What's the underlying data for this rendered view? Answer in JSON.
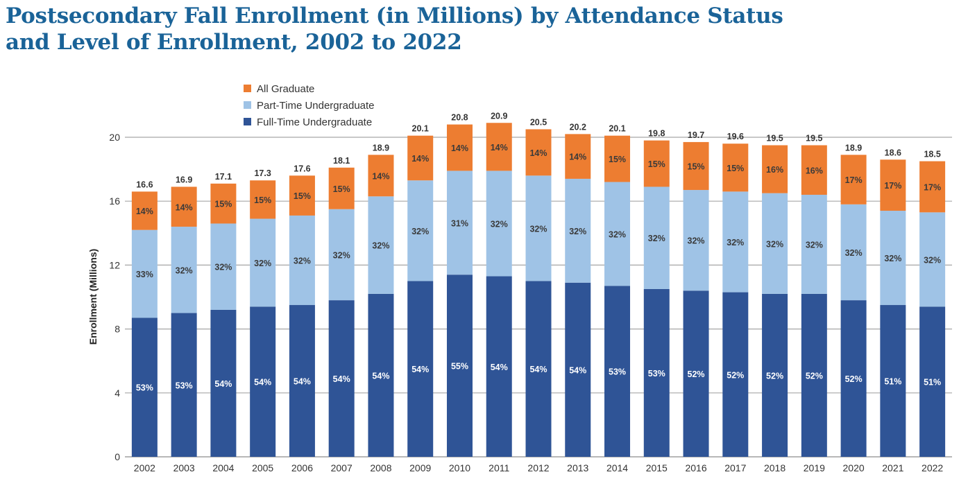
{
  "title_line1": "Postsecondary Fall Enrollment (in Millions) by Attendance Status",
  "title_line2": "and Level of Enrollment, 2002 to 2022",
  "chart_data": {
    "type": "bar",
    "stacked": true,
    "title": "Postsecondary Fall Enrollment (in Millions) by Attendance Status and Level of Enrollment, 2002 to 2022",
    "xlabel": "",
    "ylabel": "Enrollment (Millions)",
    "ylim": [
      0,
      20
    ],
    "yticks": [
      0,
      4,
      8,
      12,
      16,
      20
    ],
    "grid": true,
    "legend_position": "top-left",
    "categories": [
      "2002",
      "2003",
      "2004",
      "2005",
      "2006",
      "2007",
      "2008",
      "2009",
      "2010",
      "2011",
      "2012",
      "2013",
      "2014",
      "2015",
      "2016",
      "2017",
      "2018",
      "2019",
      "2020",
      "2021",
      "2022"
    ],
    "totals": [
      16.6,
      16.9,
      17.1,
      17.3,
      17.6,
      18.1,
      18.9,
      20.1,
      20.8,
      20.9,
      20.5,
      20.2,
      20.1,
      19.8,
      19.7,
      19.6,
      19.5,
      19.5,
      18.9,
      18.6,
      18.5
    ],
    "series": [
      {
        "name": "Full-Time Undergraduate",
        "color": "#2f5496",
        "percent_labels": [
          "53%",
          "53%",
          "54%",
          "54%",
          "54%",
          "54%",
          "54%",
          "54%",
          "55%",
          "54%",
          "54%",
          "54%",
          "53%",
          "53%",
          "52%",
          "52%",
          "52%",
          "52%",
          "52%",
          "51%",
          "51%"
        ],
        "values": [
          8.7,
          9.0,
          9.2,
          9.4,
          9.5,
          9.8,
          10.2,
          11.0,
          11.4,
          11.3,
          11.0,
          10.9,
          10.7,
          10.5,
          10.4,
          10.3,
          10.2,
          10.2,
          9.8,
          9.5,
          9.4
        ]
      },
      {
        "name": "Part-Time Undergraduate",
        "color": "#9fc3e6",
        "percent_labels": [
          "33%",
          "32%",
          "32%",
          "32%",
          "32%",
          "32%",
          "32%",
          "32%",
          "31%",
          "32%",
          "32%",
          "32%",
          "32%",
          "32%",
          "32%",
          "32%",
          "32%",
          "32%",
          "32%",
          "32%",
          "32%"
        ],
        "values": [
          5.5,
          5.4,
          5.4,
          5.5,
          5.6,
          5.7,
          6.1,
          6.3,
          6.5,
          6.6,
          6.6,
          6.5,
          6.5,
          6.4,
          6.3,
          6.3,
          6.3,
          6.2,
          6.0,
          5.9,
          5.9
        ]
      },
      {
        "name": "All Graduate",
        "color": "#ed7d31",
        "percent_labels": [
          "14%",
          "14%",
          "15%",
          "15%",
          "15%",
          "15%",
          "14%",
          "14%",
          "14%",
          "14%",
          "14%",
          "14%",
          "15%",
          "15%",
          "15%",
          "15%",
          "16%",
          "16%",
          "17%",
          "17%",
          "17%"
        ],
        "values": [
          2.4,
          2.5,
          2.5,
          2.4,
          2.5,
          2.6,
          2.6,
          2.8,
          2.9,
          3.0,
          2.9,
          2.8,
          2.9,
          2.9,
          3.0,
          3.0,
          3.0,
          3.1,
          3.1,
          3.2,
          3.2
        ]
      }
    ]
  },
  "legend": [
    {
      "label": "All Graduate",
      "color": "#ed7d31"
    },
    {
      "label": "Part-Time Undergraduate",
      "color": "#9fc3e6"
    },
    {
      "label": "Full-Time Undergraduate",
      "color": "#2f5496"
    }
  ]
}
